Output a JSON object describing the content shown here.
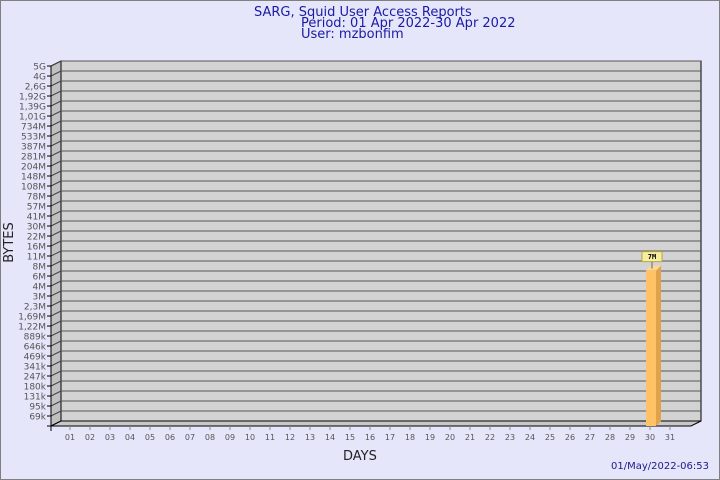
{
  "header": {
    "title": "SARG, Squid User Access Reports",
    "period": "Period: 01 Apr 2022-30 Apr 2022",
    "user": "User: mzbonfim"
  },
  "footer": {
    "generated": "01/May/2022-06:53"
  },
  "chart_data": {
    "type": "bar",
    "xlabel": "DAYS",
    "ylabel": "BYTES",
    "scale": "log",
    "grid": true,
    "y_ticks": [
      "5G",
      "4G",
      "2,6G",
      "1,92G",
      "1,39G",
      "1,01G",
      "734M",
      "533M",
      "387M",
      "281M",
      "204M",
      "148M",
      "108M",
      "78M",
      "57M",
      "41M",
      "30M",
      "22M",
      "16M",
      "11M",
      "8M",
      "6M",
      "4M",
      "3M",
      "2,3M",
      "1,69M",
      "1,22M",
      "889k",
      "646k",
      "469k",
      "341k",
      "247k",
      "180k",
      "131k",
      "95k",
      "69k"
    ],
    "categories": [
      "01",
      "02",
      "03",
      "04",
      "05",
      "06",
      "07",
      "08",
      "09",
      "10",
      "11",
      "12",
      "13",
      "14",
      "15",
      "16",
      "17",
      "18",
      "19",
      "20",
      "21",
      "22",
      "23",
      "24",
      "25",
      "26",
      "27",
      "28",
      "29",
      "30",
      "31"
    ],
    "values": [
      0,
      0,
      0,
      0,
      0,
      0,
      0,
      0,
      0,
      0,
      0,
      0,
      0,
      0,
      0,
      0,
      0,
      0,
      0,
      0,
      0,
      0,
      0,
      0,
      0,
      0,
      0,
      0,
      0,
      7000000,
      0
    ],
    "data_labels": {
      "30": "7M"
    },
    "colors": {
      "bar_front": "#ffc266",
      "bar_side": "#e0a24a",
      "plot_bg": "#d3d3d3",
      "page_bg": "#e6e6fa",
      "label_bg": "#f5eea0"
    }
  }
}
